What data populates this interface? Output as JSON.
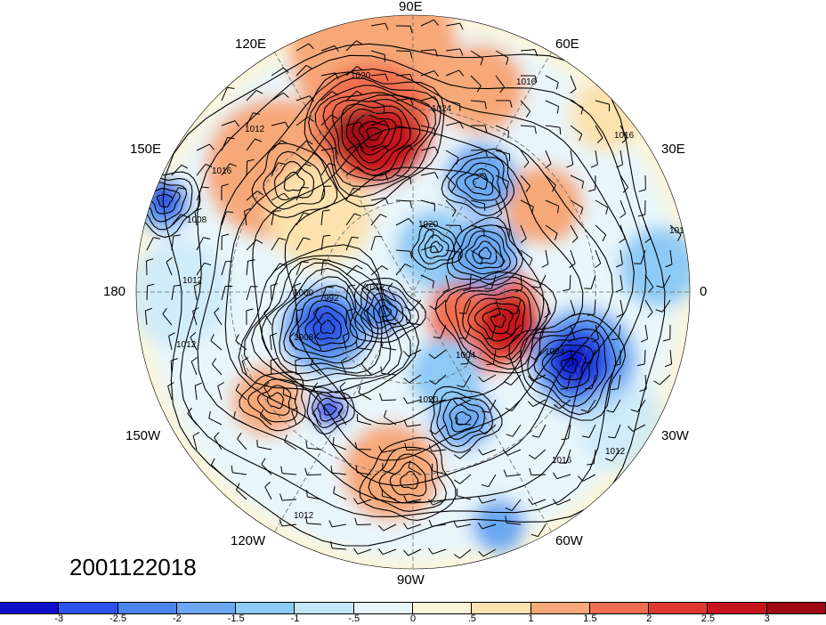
{
  "timestamp": "2001122018",
  "longitude_labels": {
    "deg90E": "90E",
    "deg120E": "120E",
    "deg60E": "60E",
    "deg150E": "150E",
    "deg30E": "30E",
    "deg180": "180",
    "deg0": "0",
    "deg150W": "150W",
    "deg30W": "30W",
    "deg120W": "120W",
    "deg60W": "60W",
    "deg90W": "90W"
  },
  "contour_labels": [
    "1020",
    "1016",
    "1024",
    "1012",
    "1008",
    "1020",
    "1000",
    "992",
    "1012",
    "1012",
    "1016",
    "1004",
    "1008",
    "1020",
    "1016",
    "1012",
    "1012",
    "1004",
    "1016",
    "1012",
    "1012"
  ],
  "colorbar": {
    "ticks": [
      "-3",
      "-2.5",
      "-2",
      "-1.5",
      "-1",
      "-.5",
      "0",
      ".5",
      "1",
      "1.5",
      "2",
      "2.5",
      "3"
    ],
    "colors": [
      "#0d0dcc",
      "#2a52e8",
      "#4a86ee",
      "#6aa8f2",
      "#8ecaf6",
      "#c0e6f8",
      "#e8f6fa",
      "#fdf6d8",
      "#fbe2ae",
      "#f6a878",
      "#f06e50",
      "#e03a30",
      "#c8141e",
      "#a00a14"
    ]
  }
}
